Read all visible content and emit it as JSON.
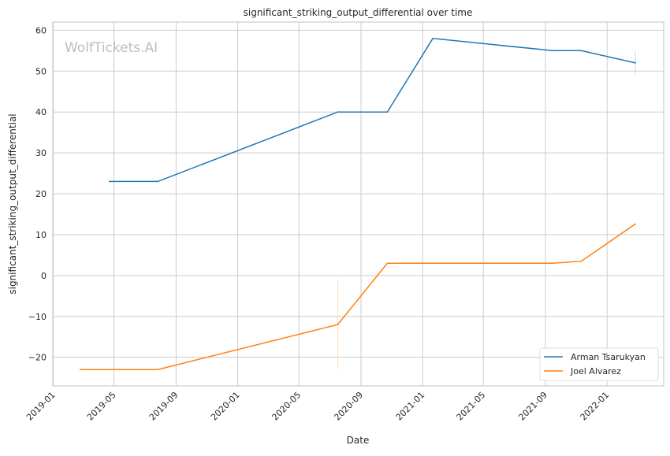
{
  "chart_data": {
    "type": "line",
    "title": "significant_striking_output_differential over time",
    "xlabel": "Date",
    "ylabel": "significant_striking_output_differential",
    "watermark": "WolfTickets.AI",
    "xlim": [
      "2018-12-31",
      "2022-04-23"
    ],
    "ylim": [
      -27,
      62
    ],
    "grid": true,
    "legend_position": "bottom-right",
    "x_ticks": [
      "2019-01",
      "2019-05",
      "2019-09",
      "2020-01",
      "2020-05",
      "2020-09",
      "2021-01",
      "2021-05",
      "2021-09",
      "2022-01"
    ],
    "y_ticks": [
      -20,
      -10,
      0,
      10,
      20,
      30,
      40,
      50,
      60
    ],
    "series": [
      {
        "name": "Arman Tsarukyan",
        "color": "#1f77b4",
        "x": [
          "2019-04-22",
          "2019-07-27",
          "2020-07-17",
          "2020-10-23",
          "2021-01-21",
          "2021-09-15",
          "2021-11-11",
          "2022-02-26"
        ],
        "y": [
          23,
          23,
          40,
          40,
          58,
          55,
          55,
          52
        ],
        "error_bars": [
          {
            "x": "2022-02-26",
            "low": 49,
            "high": 55
          }
        ]
      },
      {
        "name": "Joel Alvarez",
        "color": "#ff7f0e",
        "x": [
          "2019-02-23",
          "2019-07-27",
          "2020-07-17",
          "2020-10-23",
          "2021-09-15",
          "2021-11-11",
          "2022-02-26"
        ],
        "y": [
          -23,
          -23,
          -12,
          3,
          3,
          3.5,
          12.6
        ],
        "error_bars": [
          {
            "x": "2020-07-17",
            "low": -23,
            "high": -1
          }
        ]
      }
    ]
  }
}
